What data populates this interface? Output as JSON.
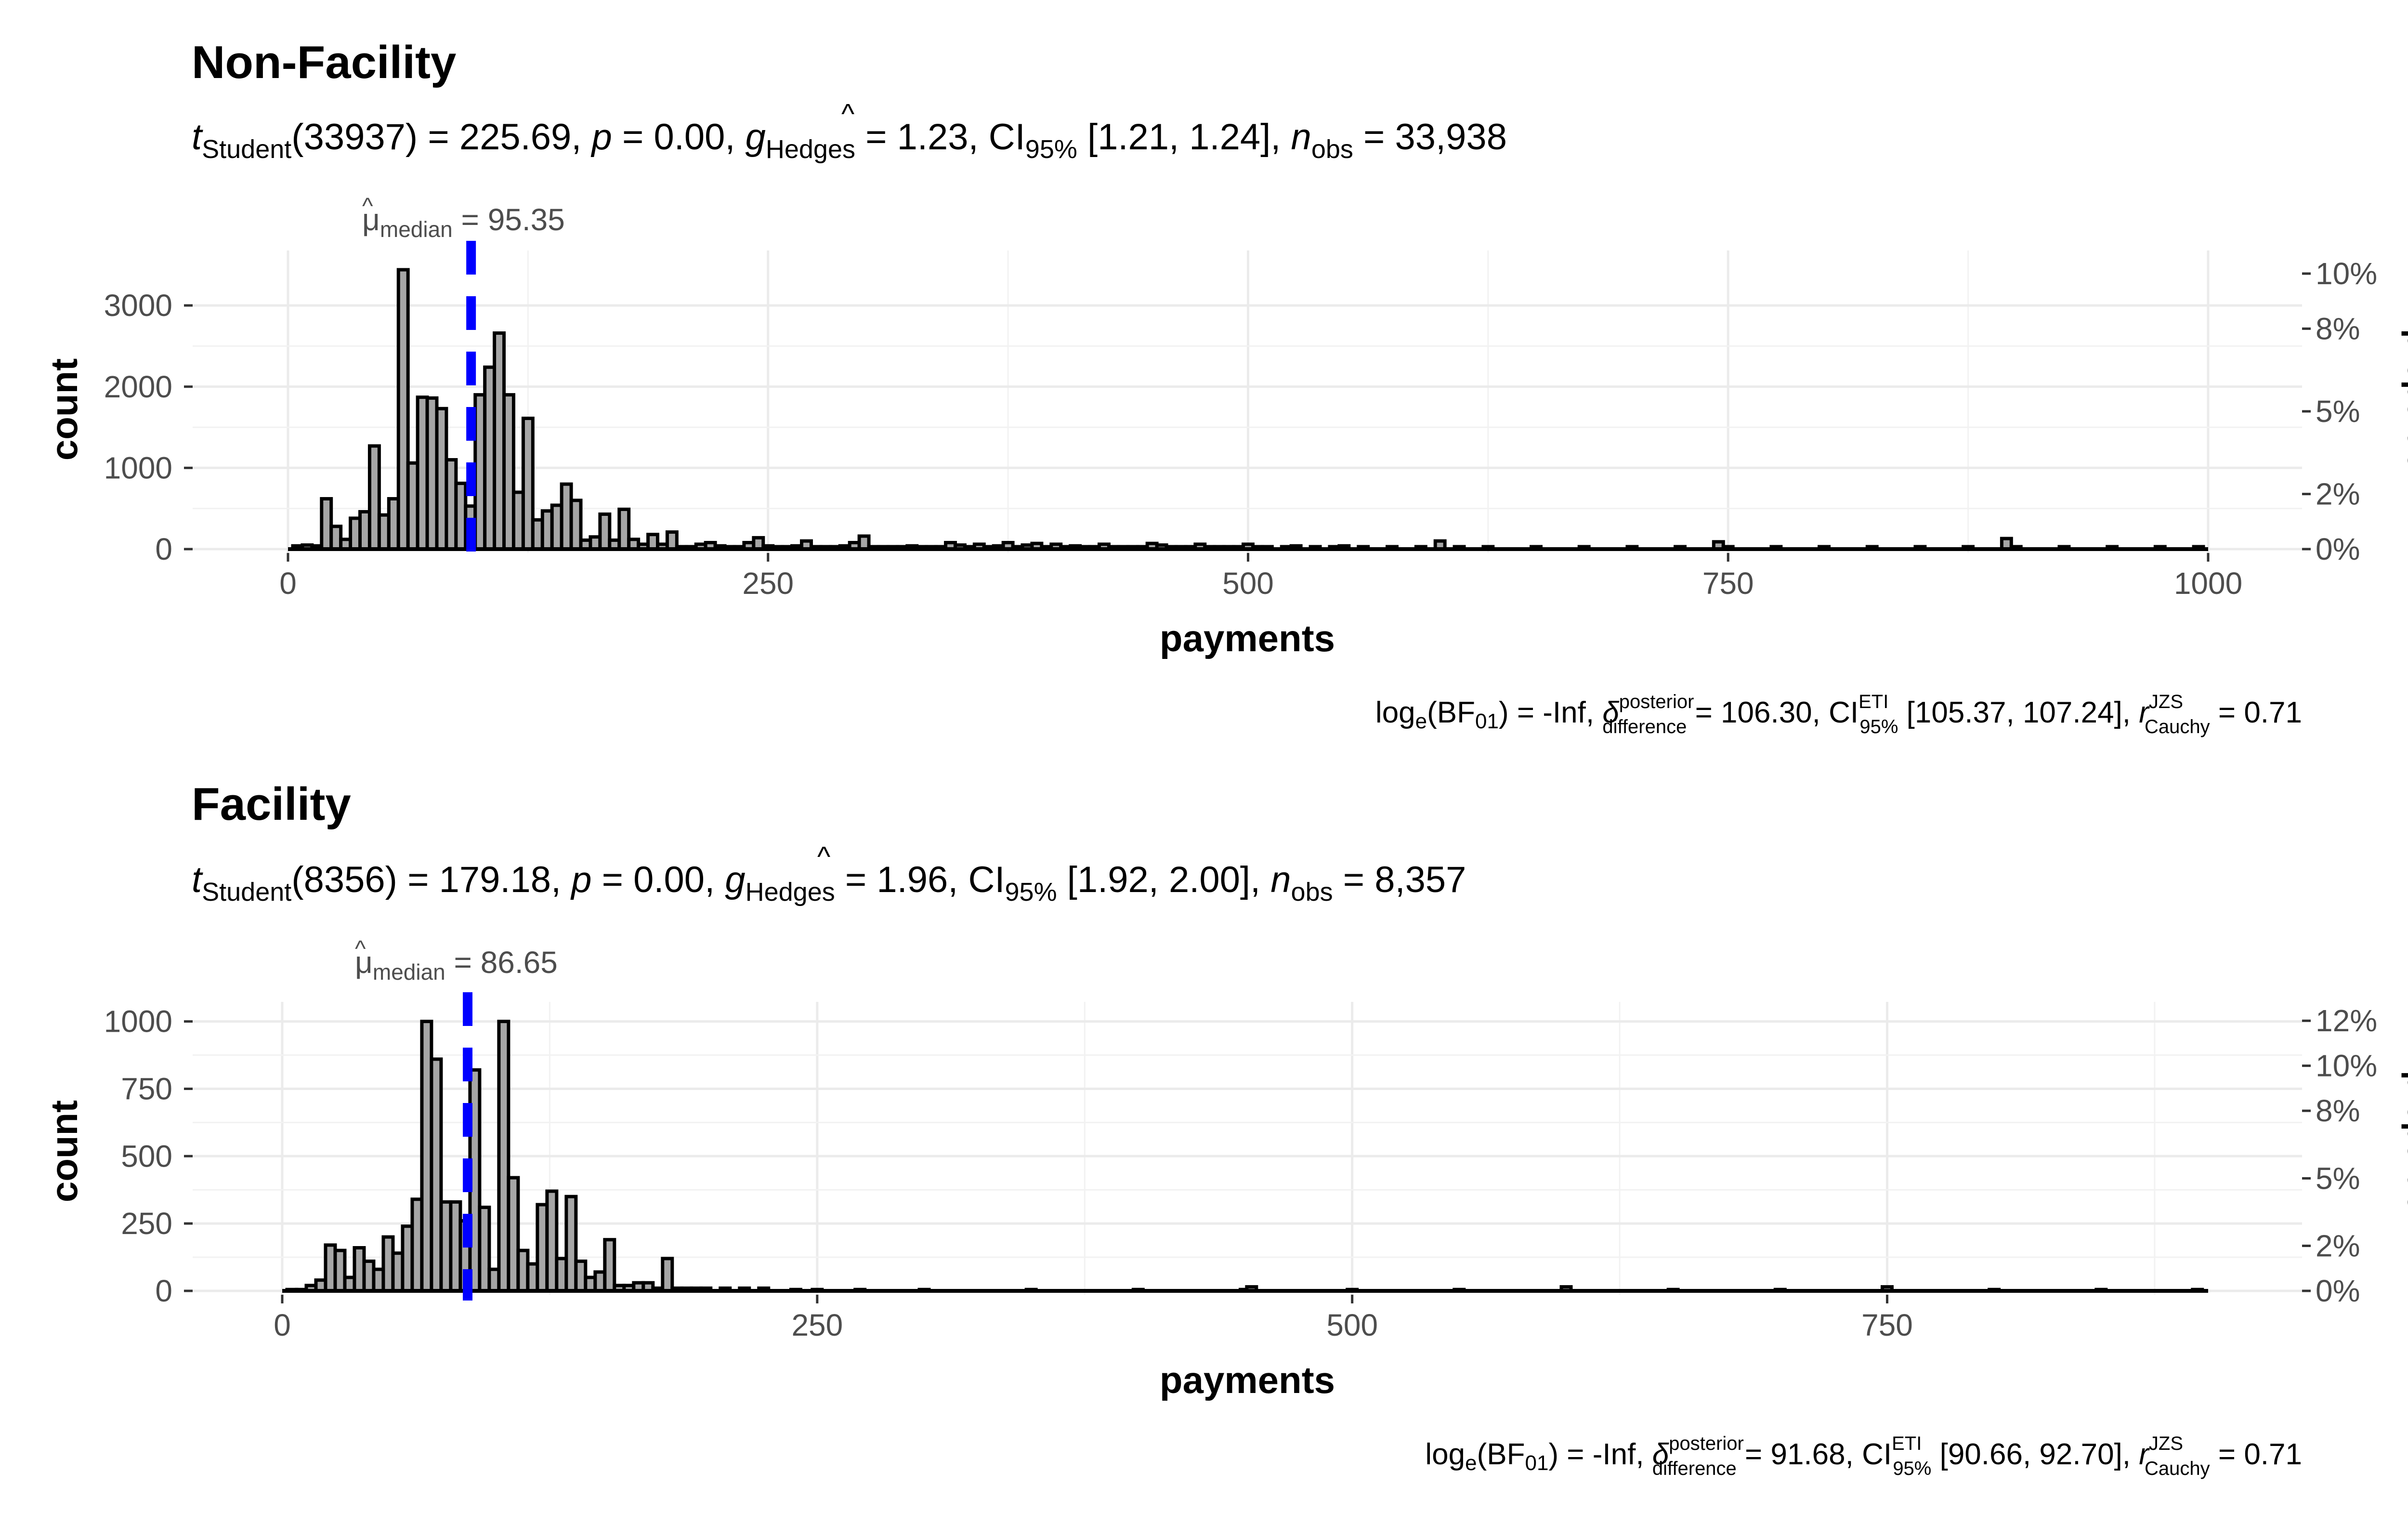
{
  "chart_data": [
    {
      "type": "bar",
      "panel_title": "Non-Facility",
      "subtitle": {
        "t_symbol": "t",
        "t_sub": "Student",
        "df": "(33937) = 225.69, ",
        "p_symbol": "p",
        "p_rest": " = 0.00, ",
        "g_symbol": "g",
        "g_sub": "Hedges",
        "g_rest": " = 1.23, CI",
        "ci_sub": "95%",
        "ci_rest": " [1.21, 1.24], ",
        "n_symbol": "n",
        "n_sub": "obs",
        "n_rest": " = 33,938"
      },
      "median_label": {
        "symbol": "μ",
        "sub": "median",
        "rest": " = 95.35"
      },
      "median_value": 95.35,
      "xlabel": "payments",
      "ylabel": "count",
      "y2label": "proportion",
      "xlim": [
        0,
        1000
      ],
      "xticks": [
        0,
        250,
        500,
        750,
        1000
      ],
      "xtick_labels": [
        "0",
        "250",
        "500",
        "750",
        "1000"
      ],
      "ylim": [
        0,
        3440
      ],
      "yticks": [
        0,
        1000,
        2000,
        3000
      ],
      "ytick_labels": [
        "0",
        "1000",
        "2000",
        "3000"
      ],
      "y2ticks": [
        0,
        2,
        5,
        8,
        10
      ],
      "y2tick_labels": [
        "0%",
        "2%",
        "5%",
        "8%",
        "10%"
      ],
      "bin_width": 5,
      "bins": [
        [
          5,
          40
        ],
        [
          10,
          50
        ],
        [
          15,
          40
        ],
        [
          20,
          620
        ],
        [
          25,
          280
        ],
        [
          30,
          120
        ],
        [
          35,
          380
        ],
        [
          40,
          460
        ],
        [
          45,
          1270
        ],
        [
          50,
          420
        ],
        [
          55,
          620
        ],
        [
          60,
          3440
        ],
        [
          65,
          1060
        ],
        [
          70,
          1870
        ],
        [
          75,
          1860
        ],
        [
          80,
          1730
        ],
        [
          85,
          1100
        ],
        [
          90,
          810
        ],
        [
          95,
          530
        ],
        [
          100,
          1900
        ],
        [
          105,
          2240
        ],
        [
          110,
          2660
        ],
        [
          115,
          1900
        ],
        [
          120,
          700
        ],
        [
          125,
          1610
        ],
        [
          130,
          360
        ],
        [
          135,
          470
        ],
        [
          140,
          540
        ],
        [
          145,
          800
        ],
        [
          150,
          600
        ],
        [
          155,
          110
        ],
        [
          160,
          150
        ],
        [
          165,
          430
        ],
        [
          170,
          110
        ],
        [
          175,
          490
        ],
        [
          180,
          120
        ],
        [
          185,
          60
        ],
        [
          190,
          180
        ],
        [
          195,
          60
        ],
        [
          200,
          210
        ],
        [
          205,
          30
        ],
        [
          210,
          30
        ],
        [
          215,
          60
        ],
        [
          220,
          80
        ],
        [
          225,
          40
        ],
        [
          230,
          30
        ],
        [
          235,
          30
        ],
        [
          240,
          80
        ],
        [
          245,
          140
        ],
        [
          250,
          40
        ],
        [
          255,
          30
        ],
        [
          260,
          30
        ],
        [
          265,
          40
        ],
        [
          270,
          100
        ],
        [
          275,
          30
        ],
        [
          280,
          30
        ],
        [
          285,
          30
        ],
        [
          290,
          40
        ],
        [
          295,
          80
        ],
        [
          300,
          160
        ],
        [
          305,
          30
        ],
        [
          310,
          30
        ],
        [
          315,
          30
        ],
        [
          320,
          30
        ],
        [
          325,
          40
        ],
        [
          330,
          30
        ],
        [
          335,
          30
        ],
        [
          340,
          30
        ],
        [
          345,
          80
        ],
        [
          350,
          50
        ],
        [
          355,
          30
        ],
        [
          360,
          60
        ],
        [
          365,
          30
        ],
        [
          370,
          40
        ],
        [
          375,
          80
        ],
        [
          380,
          30
        ],
        [
          385,
          50
        ],
        [
          390,
          70
        ],
        [
          395,
          30
        ],
        [
          400,
          60
        ],
        [
          405,
          30
        ],
        [
          410,
          40
        ],
        [
          415,
          30
        ],
        [
          420,
          30
        ],
        [
          425,
          60
        ],
        [
          430,
          30
        ],
        [
          435,
          30
        ],
        [
          440,
          30
        ],
        [
          445,
          30
        ],
        [
          450,
          70
        ],
        [
          455,
          50
        ],
        [
          460,
          30
        ],
        [
          465,
          30
        ],
        [
          470,
          30
        ],
        [
          475,
          60
        ],
        [
          480,
          30
        ],
        [
          485,
          30
        ],
        [
          490,
          30
        ],
        [
          495,
          30
        ],
        [
          500,
          60
        ],
        [
          505,
          30
        ],
        [
          510,
          30
        ],
        [
          520,
          30
        ],
        [
          525,
          40
        ],
        [
          535,
          30
        ],
        [
          545,
          30
        ],
        [
          550,
          40
        ],
        [
          560,
          30
        ],
        [
          575,
          30
        ],
        [
          590,
          30
        ],
        [
          600,
          100
        ],
        [
          610,
          30
        ],
        [
          625,
          30
        ],
        [
          650,
          30
        ],
        [
          675,
          30
        ],
        [
          700,
          30
        ],
        [
          725,
          30
        ],
        [
          745,
          90
        ],
        [
          750,
          30
        ],
        [
          775,
          30
        ],
        [
          800,
          30
        ],
        [
          825,
          30
        ],
        [
          850,
          30
        ],
        [
          875,
          30
        ],
        [
          895,
          130
        ],
        [
          900,
          30
        ],
        [
          925,
          30
        ],
        [
          950,
          30
        ],
        [
          975,
          30
        ],
        [
          995,
          30
        ]
      ],
      "bayes": {
        "prefix": "log",
        "e_sub": "e",
        "bf_open": "(BF",
        "bf_sub": "01",
        "bf_close": ") = -Inf, ",
        "delta": "δ",
        "delta_sup": "posterior",
        "delta_sub": "difference",
        "delta_rest": " = 106.30, CI",
        "ci_sup": "ETI",
        "ci_sub": "95%",
        "ci_rest": " [105.37, 107.24], ",
        "r_symbol": "r",
        "r_sup": "JZS",
        "r_sub": "Cauchy",
        "r_rest": " = 0.71"
      }
    },
    {
      "type": "bar",
      "panel_title": "Facility",
      "subtitle": {
        "t_symbol": "t",
        "t_sub": "Student",
        "df": "(8356) = 179.18, ",
        "p_symbol": "p",
        "p_rest": " = 0.00, ",
        "g_symbol": "g",
        "g_sub": "Hedges",
        "g_rest": " = 1.96, CI",
        "ci_sub": "95%",
        "ci_rest": " [1.92, 2.00], ",
        "n_symbol": "n",
        "n_sub": "obs",
        "n_rest": " = 8,357"
      },
      "median_label": {
        "symbol": "μ",
        "sub": "median",
        "rest": " = 86.65"
      },
      "median_value": 86.65,
      "xlabel": "payments",
      "ylabel": "count",
      "y2label": "proportion",
      "xlim": [
        0,
        900
      ],
      "xticks": [
        0,
        250,
        500,
        750
      ],
      "xtick_labels": [
        "0",
        "250",
        "500",
        "750"
      ],
      "ylim": [
        0,
        1010
      ],
      "yticks": [
        0,
        250,
        500,
        750,
        1000
      ],
      "ytick_labels": [
        "0",
        "250",
        "500",
        "750",
        "1000"
      ],
      "y2ticks": [
        0,
        2,
        5,
        8,
        10,
        12
      ],
      "y2tick_labels": [
        "0%",
        "2%",
        "5%",
        "8%",
        "10%",
        "12%"
      ],
      "bin_width": 4.5,
      "bins": [
        [
          4.5,
          5
        ],
        [
          9,
          5
        ],
        [
          13.5,
          20
        ],
        [
          18,
          40
        ],
        [
          22.5,
          170
        ],
        [
          27,
          150
        ],
        [
          31.5,
          50
        ],
        [
          36,
          160
        ],
        [
          40.5,
          110
        ],
        [
          45,
          80
        ],
        [
          49.5,
          200
        ],
        [
          54,
          140
        ],
        [
          58.5,
          240
        ],
        [
          63,
          340
        ],
        [
          67.5,
          1000
        ],
        [
          72,
          860
        ],
        [
          76.5,
          330
        ],
        [
          81,
          330
        ],
        [
          85.5,
          260
        ],
        [
          90,
          820
        ],
        [
          94.5,
          310
        ],
        [
          99,
          80
        ],
        [
          103.5,
          1000
        ],
        [
          108,
          420
        ],
        [
          112.5,
          150
        ],
        [
          117,
          100
        ],
        [
          121.5,
          320
        ],
        [
          126,
          370
        ],
        [
          130.5,
          120
        ],
        [
          135,
          350
        ],
        [
          139.5,
          110
        ],
        [
          144,
          50
        ],
        [
          148.5,
          70
        ],
        [
          153,
          190
        ],
        [
          157.5,
          20
        ],
        [
          162,
          20
        ],
        [
          166.5,
          30
        ],
        [
          171,
          30
        ],
        [
          175.5,
          10
        ],
        [
          180,
          120
        ],
        [
          184.5,
          10
        ],
        [
          189,
          10
        ],
        [
          193.5,
          10
        ],
        [
          198,
          10
        ],
        [
          207,
          10
        ],
        [
          216,
          10
        ],
        [
          225,
          10
        ],
        [
          240,
          5
        ],
        [
          250,
          5
        ],
        [
          270,
          5
        ],
        [
          300,
          5
        ],
        [
          350,
          5
        ],
        [
          400,
          5
        ],
        [
          450,
          5
        ],
        [
          453,
          15
        ],
        [
          500,
          5
        ],
        [
          550,
          5
        ],
        [
          600,
          15
        ],
        [
          650,
          5
        ],
        [
          700,
          5
        ],
        [
          750,
          15
        ],
        [
          800,
          5
        ],
        [
          850,
          5
        ],
        [
          895,
          5
        ]
      ],
      "bayes": {
        "prefix": "log",
        "e_sub": "e",
        "bf_open": "(BF",
        "bf_sub": "01",
        "bf_close": ") = -Inf, ",
        "delta": "δ",
        "delta_sup": "posterior",
        "delta_sub": "difference",
        "delta_rest": " = 91.68, CI",
        "ci_sup": "ETI",
        "ci_sub": "95%",
        "ci_rest": " [90.66, 92.70], ",
        "r_symbol": "r",
        "r_sup": "JZS",
        "r_sub": "Cauchy",
        "r_rest": " = 0.71"
      }
    }
  ]
}
